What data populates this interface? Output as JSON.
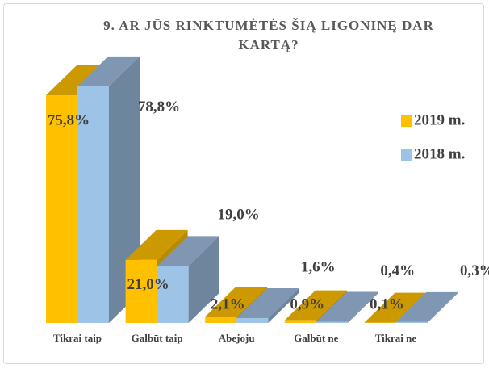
{
  "chart_data": {
    "type": "bar3d",
    "title": "9. AR JŪS RINKTUMĖTĖS ŠIĄ LIGONINĘ DAR KARTĄ?",
    "categories": [
      "Tikrai taip",
      "Galbūt taip",
      "Abejoju",
      "Galbūt ne",
      "Tikrai ne"
    ],
    "series": [
      {
        "name": "2019 m.",
        "color": "#ffc000",
        "values": [
          75.8,
          21.0,
          2.1,
          0.9,
          0.1
        ],
        "value_labels": [
          "75,8%",
          "21,0%",
          "2,1%",
          "0,9%",
          "0,1%"
        ]
      },
      {
        "name": "2018 m.",
        "color": "#9dc3e6",
        "values": [
          78.8,
          19.0,
          1.6,
          0.4,
          0.3
        ],
        "value_labels": [
          "78,8%",
          "19,0%",
          "1,6%",
          "0,4%",
          "0,3%"
        ]
      }
    ],
    "legend": "right"
  }
}
